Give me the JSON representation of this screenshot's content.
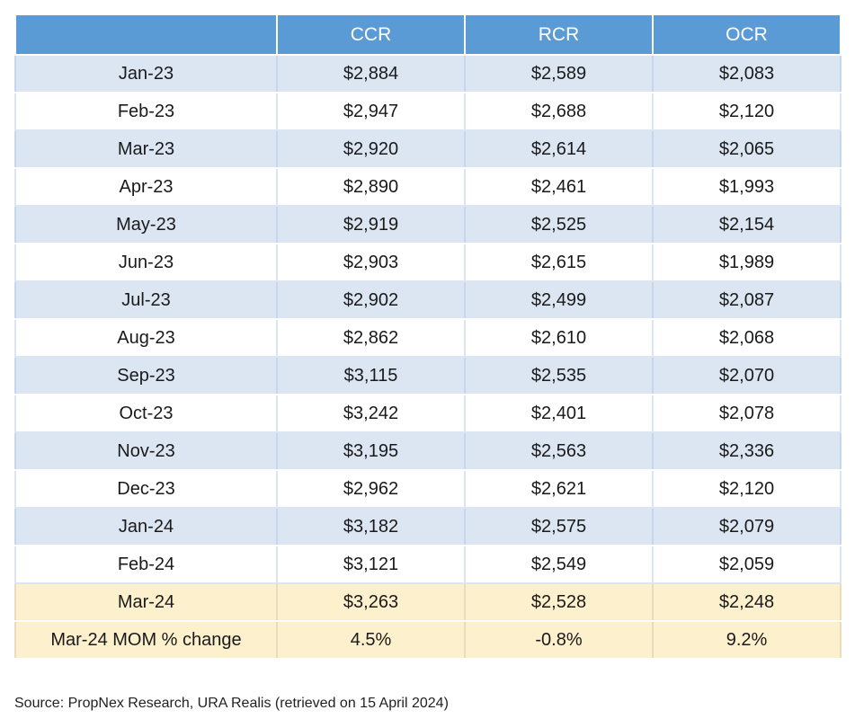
{
  "table": {
    "headers": [
      "",
      "CCR",
      "RCR",
      "OCR"
    ],
    "rows": [
      {
        "label": "Jan-23",
        "ccr": "$2,884",
        "rcr": "$2,589",
        "ocr": "$2,083"
      },
      {
        "label": "Feb-23",
        "ccr": "$2,947",
        "rcr": "$2,688",
        "ocr": "$2,120"
      },
      {
        "label": "Mar-23",
        "ccr": "$2,920",
        "rcr": "$2,614",
        "ocr": "$2,065"
      },
      {
        "label": "Apr-23",
        "ccr": "$2,890",
        "rcr": "$2,461",
        "ocr": "$1,993"
      },
      {
        "label": "May-23",
        "ccr": "$2,919",
        "rcr": "$2,525",
        "ocr": "$2,154"
      },
      {
        "label": "Jun-23",
        "ccr": "$2,903",
        "rcr": "$2,615",
        "ocr": "$1,989"
      },
      {
        "label": "Jul-23",
        "ccr": "$2,902",
        "rcr": "$2,499",
        "ocr": "$2,087"
      },
      {
        "label": "Aug-23",
        "ccr": "$2,862",
        "rcr": "$2,610",
        "ocr": "$2,068"
      },
      {
        "label": "Sep-23",
        "ccr": "$3,115",
        "rcr": "$2,535",
        "ocr": "$2,070"
      },
      {
        "label": "Oct-23",
        "ccr": "$3,242",
        "rcr": "$2,401",
        "ocr": "$2,078"
      },
      {
        "label": "Nov-23",
        "ccr": "$3,195",
        "rcr": "$2,563",
        "ocr": "$2,336"
      },
      {
        "label": "Dec-23",
        "ccr": "$2,962",
        "rcr": "$2,621",
        "ocr": "$2,120"
      },
      {
        "label": "Jan-24",
        "ccr": "$3,182",
        "rcr": "$2,575",
        "ocr": "$2,079"
      },
      {
        "label": "Feb-24",
        "ccr": "$3,121",
        "rcr": "$2,549",
        "ocr": "$2,059"
      },
      {
        "label": "Mar-24",
        "ccr": "$3,263",
        "rcr": "$2,528",
        "ocr": "$2,248"
      },
      {
        "label": "Mar-24 MOM % change",
        "ccr": "4.5%",
        "rcr": "-0.8%",
        "ocr": "9.2%"
      }
    ],
    "highlight_rows": [
      "Mar-24",
      "Mar-24 MOM % change"
    ]
  },
  "source": "Source: PropNex Research, URA Realis (retrieved on 15 April 2024)",
  "colors": {
    "header_bg": "#5b9bd5",
    "band_bg": "#dce6f2",
    "highlight_bg": "#fdf0cd"
  }
}
